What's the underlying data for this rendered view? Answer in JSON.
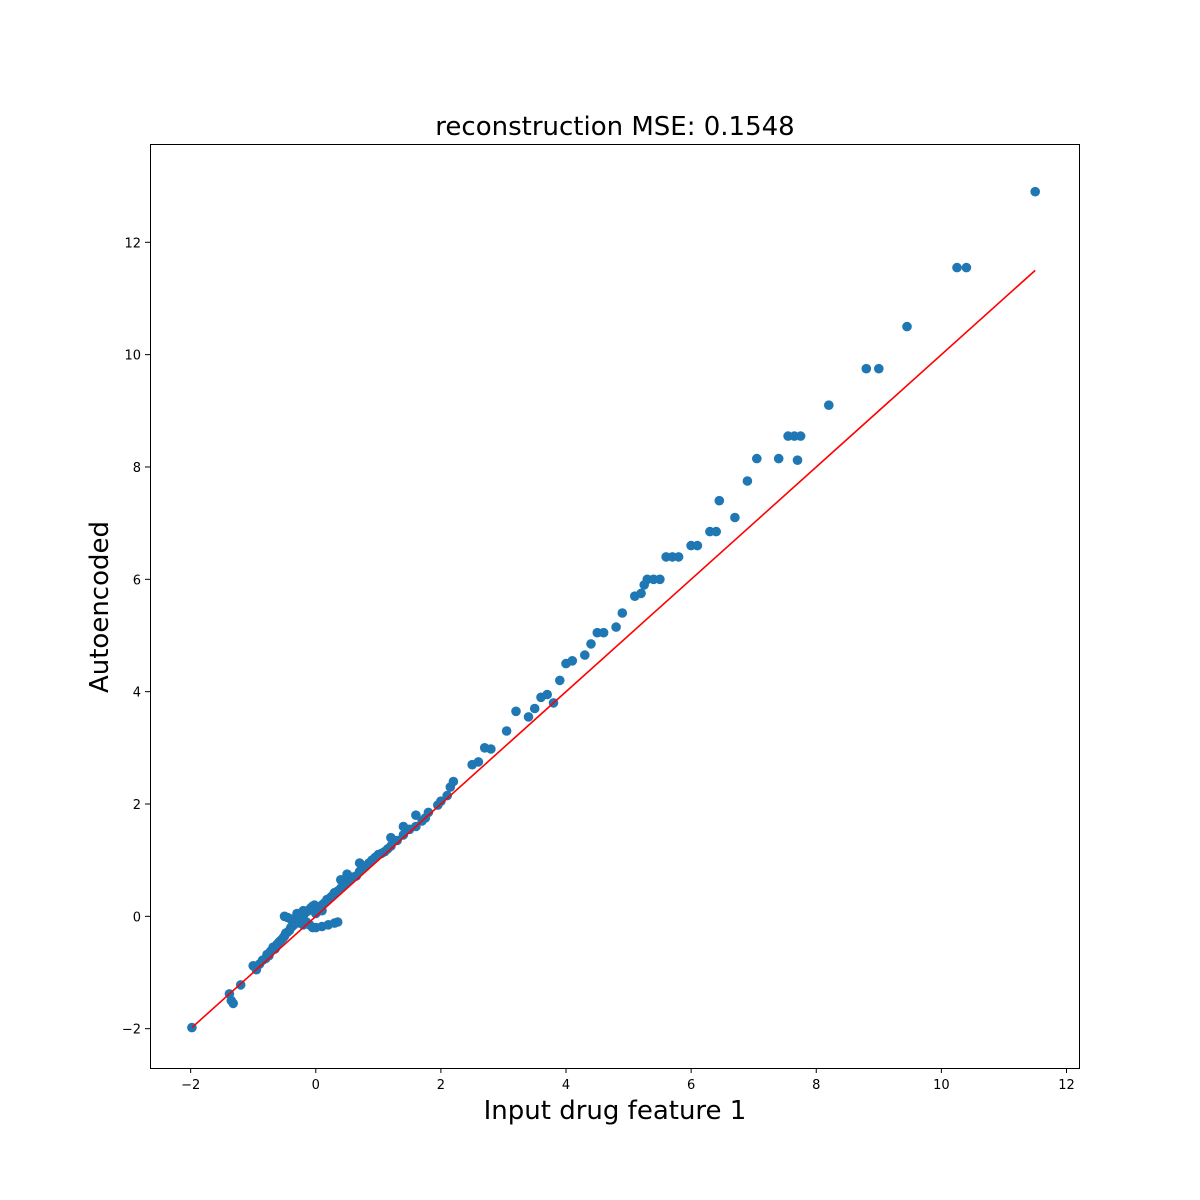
{
  "chart_data": {
    "type": "scatter",
    "title": "reconstruction MSE: 0.1548",
    "xlabel": "Input drug feature 1",
    "ylabel": "Autoencoded",
    "xlim": [
      -2.65,
      12.2
    ],
    "ylim": [
      -2.7,
      13.75
    ],
    "xticks": [
      -2,
      0,
      2,
      4,
      6,
      8,
      10,
      12
    ],
    "yticks": [
      -2,
      0,
      2,
      4,
      6,
      8,
      10,
      12
    ],
    "xtick_labels": [
      "−2",
      "0",
      "2",
      "4",
      "6",
      "8",
      "10",
      "12"
    ],
    "ytick_labels": [
      "−2",
      "0",
      "2",
      "4",
      "6",
      "8",
      "10",
      "12"
    ],
    "grid": false,
    "legend": "none",
    "colors": {
      "points": "#1f77b4",
      "reference_line": "#ff0000"
    },
    "series": [
      {
        "kind": "points",
        "x": [
          -1.98,
          -1.38,
          -1.35,
          -1.32,
          -1.2,
          -1.0,
          -0.95,
          -0.9,
          -0.85,
          -0.8,
          -0.78,
          -0.75,
          -0.72,
          -0.7,
          -0.68,
          -0.65,
          -0.62,
          -0.6,
          -0.58,
          -0.55,
          -0.52,
          -0.5,
          -0.48,
          -0.45,
          -0.42,
          -0.4,
          -0.38,
          -0.35,
          -0.32,
          -0.3,
          -0.28,
          -0.25,
          -0.22,
          -0.2,
          -0.18,
          -0.15,
          -0.12,
          -0.1,
          -0.08,
          -0.05,
          -0.02,
          0.0,
          0.02,
          0.05,
          0.08,
          0.1,
          0.12,
          0.15,
          0.18,
          0.2,
          0.22,
          0.25,
          0.28,
          0.3,
          0.35,
          0.4,
          0.45,
          0.5,
          0.55,
          0.6,
          0.65,
          0.7,
          0.75,
          0.8,
          0.85,
          0.9,
          0.95,
          1.0,
          1.05,
          1.1,
          1.15,
          1.2,
          1.3,
          1.4,
          1.5,
          1.6,
          1.7,
          1.75,
          1.8,
          1.95,
          2.0,
          2.1,
          2.15,
          2.2,
          2.5,
          2.6,
          2.7,
          2.8,
          3.05,
          3.2,
          3.4,
          3.5,
          3.6,
          3.7,
          3.8,
          3.9,
          4.0,
          4.1,
          4.3,
          4.4,
          4.5,
          4.6,
          4.8,
          4.9,
          5.1,
          5.2,
          5.25,
          5.3,
          5.4,
          5.5,
          5.6,
          5.7,
          5.8,
          6.0,
          6.1,
          6.3,
          6.4,
          6.45,
          6.7,
          6.9,
          7.05,
          7.4,
          7.55,
          7.65,
          7.7,
          7.75,
          8.2,
          8.8,
          9.0,
          9.45,
          10.25,
          10.4,
          11.5,
          -0.4,
          -0.35,
          -0.3,
          -0.25,
          -0.2,
          -0.15,
          -0.1,
          -0.05,
          0.1,
          0.2,
          0.3,
          0.35,
          -0.5,
          -0.45,
          -0.3,
          -0.2,
          0.0,
          0.1,
          0.4,
          0.5,
          0.7,
          0.9,
          1.2,
          1.4,
          1.6
        ],
        "y": [
          -1.98,
          -1.38,
          -1.5,
          -1.55,
          -1.22,
          -0.88,
          -0.95,
          -0.85,
          -0.78,
          -0.75,
          -0.68,
          -0.7,
          -0.62,
          -0.6,
          -0.55,
          -0.58,
          -0.5,
          -0.48,
          -0.45,
          -0.42,
          -0.38,
          -0.35,
          -0.3,
          -0.28,
          -0.25,
          -0.2,
          -0.18,
          -0.15,
          -0.1,
          -0.08,
          -0.05,
          0.0,
          -0.02,
          0.02,
          0.05,
          0.08,
          0.1,
          0.12,
          0.15,
          0.18,
          0.2,
          0.05,
          0.08,
          0.1,
          0.15,
          0.2,
          0.22,
          0.25,
          0.3,
          0.3,
          0.32,
          0.35,
          0.38,
          0.42,
          0.45,
          0.5,
          0.55,
          0.6,
          0.65,
          0.7,
          0.72,
          0.8,
          0.85,
          0.9,
          0.95,
          1.0,
          1.05,
          1.1,
          1.12,
          1.15,
          1.2,
          1.25,
          1.35,
          1.45,
          1.55,
          1.6,
          1.7,
          1.75,
          1.85,
          1.98,
          2.05,
          2.15,
          2.3,
          2.4,
          2.7,
          2.75,
          3.0,
          2.98,
          3.3,
          3.65,
          3.55,
          3.7,
          3.9,
          3.95,
          3.8,
          4.2,
          4.5,
          4.55,
          4.65,
          4.85,
          5.05,
          5.05,
          5.15,
          5.4,
          5.7,
          5.75,
          5.9,
          6.0,
          6.0,
          6.0,
          6.4,
          6.4,
          6.4,
          6.6,
          6.6,
          6.85,
          6.85,
          7.4,
          7.1,
          7.75,
          8.15,
          8.15,
          8.55,
          8.55,
          8.12,
          8.55,
          9.1,
          9.75,
          9.75,
          10.5,
          11.55,
          11.55,
          12.9,
          -0.05,
          -0.08,
          -0.1,
          -0.12,
          -0.15,
          -0.1,
          -0.15,
          -0.2,
          -0.18,
          -0.15,
          -0.12,
          -0.1,
          0.0,
          -0.02,
          0.05,
          0.1,
          -0.2,
          0.1,
          0.65,
          0.75,
          0.95,
          1.0,
          1.4,
          1.6,
          1.8
        ]
      }
    ],
    "reference_line": {
      "x": [
        -1.98,
        11.5
      ],
      "y": [
        -1.98,
        11.5
      ]
    }
  }
}
